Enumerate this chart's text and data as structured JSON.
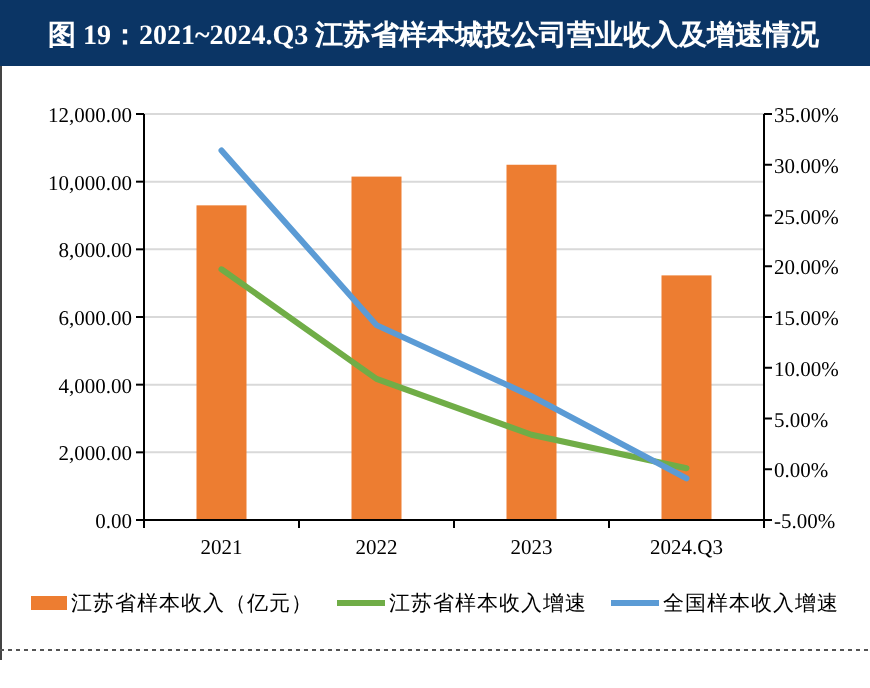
{
  "chart_data": {
    "type": "bar",
    "title": "图 19：2021~2024.Q3 江苏省样本城投公司营业收入及增速情况",
    "categories": [
      "2021",
      "2022",
      "2023",
      "2024.Q3"
    ],
    "series": [
      {
        "name": "江苏省样本收入（亿元）",
        "color": "#ed7d31",
        "values": [
          9300,
          10150,
          10500,
          7230
        ]
      },
      {
        "name": "江苏省样本收入增速",
        "type": "line",
        "axis": "y2",
        "color": "#70ad47",
        "values": [
          19.7,
          8.9,
          3.4,
          0.1
        ]
      },
      {
        "name": "全国样本收入增速",
        "type": "line",
        "axis": "y2",
        "color": "#5b9bd5",
        "values": [
          31.4,
          14.2,
          7.2,
          -0.9
        ]
      }
    ],
    "ylim": [
      0,
      12000
    ],
    "yticks": [
      {
        "value": 0,
        "label": "0.00"
      },
      {
        "value": 2000,
        "label": "2,000.00"
      },
      {
        "value": 4000,
        "label": "4,000.00"
      },
      {
        "value": 6000,
        "label": "6,000.00"
      },
      {
        "value": 8000,
        "label": "8,000.00"
      },
      {
        "value": 10000,
        "label": "10,000.00"
      },
      {
        "value": 12000,
        "label": "12,000.00"
      }
    ],
    "y2lim": [
      -5,
      35
    ],
    "y2ticks": [
      {
        "value": -5,
        "label": "-5.00%"
      },
      {
        "value": 0,
        "label": "0.00%"
      },
      {
        "value": 5,
        "label": "5.00%"
      },
      {
        "value": 10,
        "label": "10.00%"
      },
      {
        "value": 15,
        "label": "15.00%"
      },
      {
        "value": 20,
        "label": "20.00%"
      },
      {
        "value": 25,
        "label": "25.00%"
      },
      {
        "value": 30,
        "label": "30.00%"
      },
      {
        "value": 35,
        "label": "35.00%"
      }
    ],
    "grid": "y",
    "legend": "bottom"
  }
}
